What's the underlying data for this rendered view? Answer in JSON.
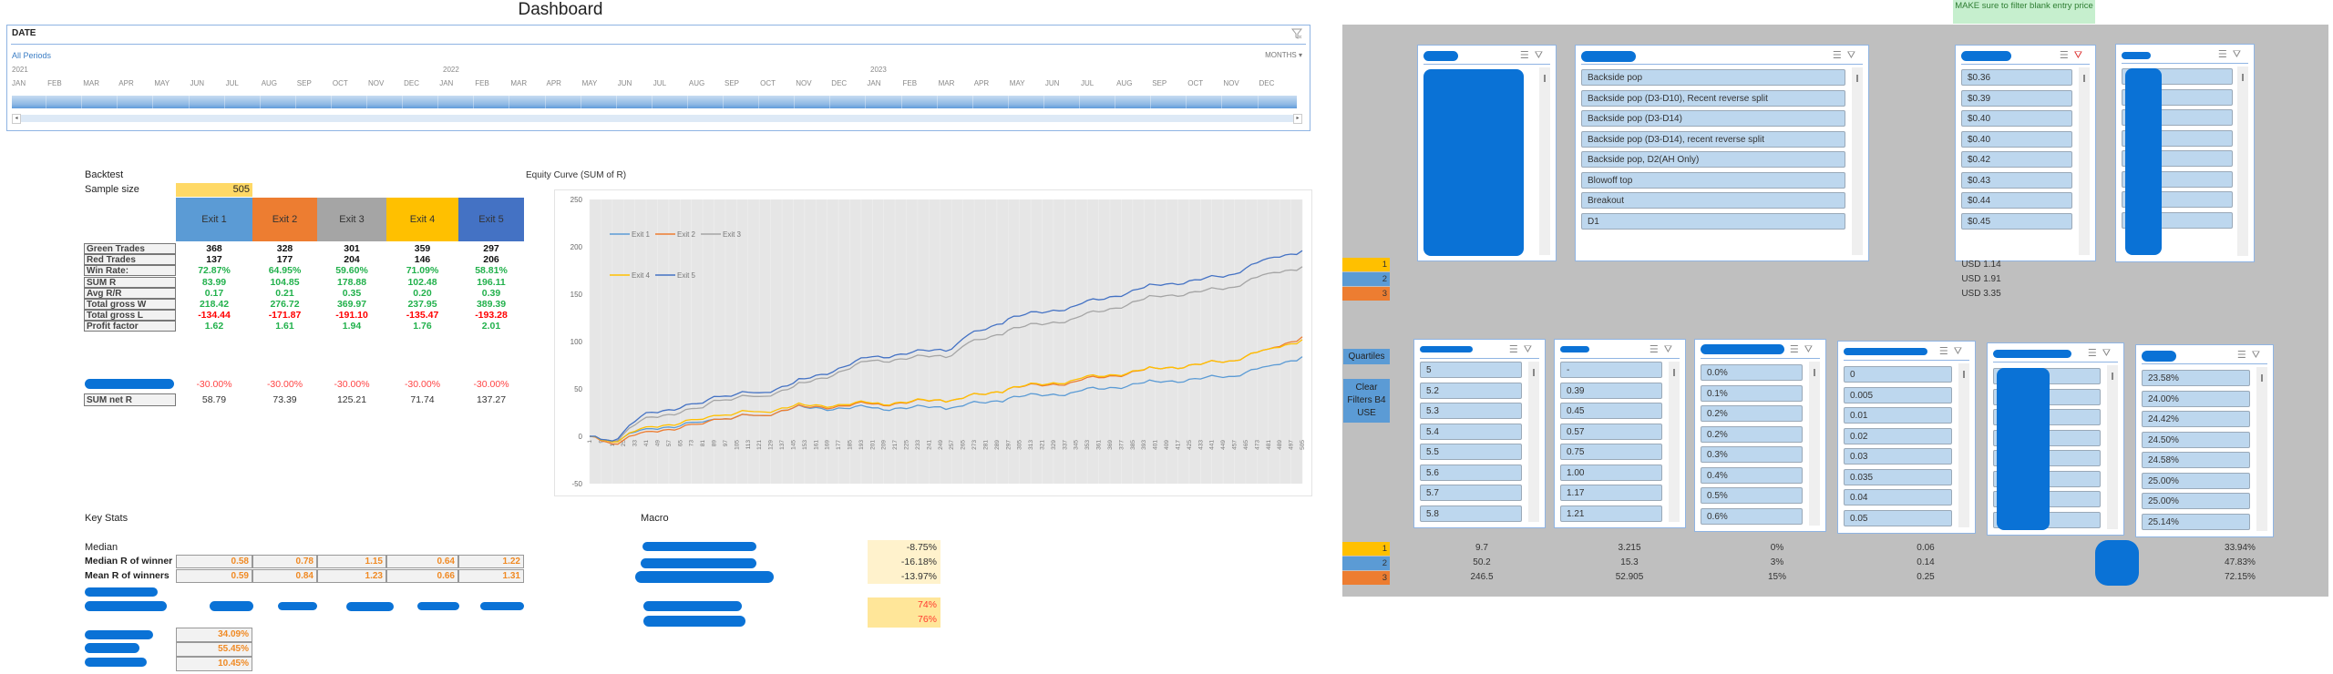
{
  "title": "Dashboard",
  "timeline": {
    "header": "DATE",
    "all_periods": "All Periods",
    "granularity": "MONTHS ▾",
    "years": [
      {
        "label": "2021",
        "x": 5
      },
      {
        "label": "2022",
        "x": 478
      },
      {
        "label": "2023",
        "x": 947
      }
    ],
    "months": [
      "JAN",
      "FEB",
      "MAR",
      "APR",
      "MAY",
      "JUN",
      "JUL",
      "AUG",
      "SEP",
      "OCT",
      "NOV",
      "DEC",
      "JAN",
      "FEB",
      "MAR",
      "APR",
      "MAY",
      "JUN",
      "JUL",
      "AUG",
      "SEP",
      "OCT",
      "NOV",
      "DEC",
      "JAN",
      "FEB",
      "MAR",
      "APR",
      "MAY",
      "JUN",
      "JUL",
      "AUG",
      "SEP",
      "OCT",
      "NOV",
      "DEC"
    ],
    "scroll_left": "◂",
    "scroll_right": "▸"
  },
  "backtest": {
    "heading": "Backtest",
    "sample_size_label": "Sample size",
    "sample_size": "505",
    "exits": [
      {
        "label": "Exit 1",
        "color": "#5b9bd5"
      },
      {
        "label": "Exit 2",
        "color": "#ed7d31"
      },
      {
        "label": "Exit 3",
        "color": "#a5a5a5"
      },
      {
        "label": "Exit 4",
        "color": "#ffc000"
      },
      {
        "label": "Exit 5",
        "color": "#4472c4"
      }
    ],
    "rows": [
      {
        "label": "Green Trades",
        "style": "black",
        "values": [
          "368",
          "328",
          "301",
          "359",
          "297"
        ]
      },
      {
        "label": "Red Trades",
        "style": "black",
        "values": [
          "137",
          "177",
          "204",
          "146",
          "206"
        ]
      },
      {
        "label": "Win Rate:",
        "style": "green",
        "values": [
          "72.87%",
          "64.95%",
          "59.60%",
          "71.09%",
          "58.81%"
        ]
      },
      {
        "label": "SUM R",
        "style": "green",
        "values": [
          "83.99",
          "104.85",
          "178.88",
          "102.48",
          "196.11"
        ]
      },
      {
        "label": "Avg R/R",
        "style": "green",
        "values": [
          "0.17",
          "0.21",
          "0.35",
          "0.20",
          "0.39"
        ]
      },
      {
        "label": "Total gross W",
        "style": "green",
        "values": [
          "218.42",
          "276.72",
          "369.97",
          "237.95",
          "389.39"
        ]
      },
      {
        "label": "Total gross L",
        "style": "red",
        "values": [
          "-134.44",
          "-171.87",
          "-191.10",
          "-135.47",
          "-193.28"
        ]
      },
      {
        "label": "Profit factor",
        "style": "green",
        "values": [
          "1.62",
          "1.61",
          "1.94",
          "1.76",
          "2.01"
        ]
      }
    ],
    "redacted_row_values": [
      "-30.00%",
      "-30.00%",
      "-30.00%",
      "-30.00%",
      "-30.00%"
    ],
    "sum_net_r_label": "SUM net R",
    "sum_net_r": [
      "58.79",
      "73.39",
      "125.21",
      "71.74",
      "137.27"
    ]
  },
  "chart_data": {
    "type": "line",
    "title": "Equity Curve (SUM of R)",
    "xlabel": "",
    "ylabel": "",
    "ylim": [
      -50,
      250
    ],
    "yticks": [
      -50,
      0,
      50,
      100,
      150,
      200,
      250
    ],
    "x_tick_start": 1,
    "x_tick_step": 8,
    "x_tick_end": 505,
    "x": [
      1,
      17,
      41,
      81,
      89,
      121,
      145,
      201,
      257,
      265,
      297,
      345,
      401,
      449,
      481,
      505
    ],
    "legend_position": "top-left (inside plot)",
    "grid": true,
    "series": [
      {
        "name": "Exit 1",
        "color": "#5b9bd5",
        "values": [
          0,
          -5,
          8,
          15,
          18,
          22,
          30,
          30,
          30,
          32,
          40,
          47,
          58,
          62,
          74,
          84
        ]
      },
      {
        "name": "Exit 2",
        "color": "#ed7d31",
        "values": [
          0,
          -8,
          5,
          13,
          18,
          22,
          30,
          34,
          38,
          40,
          50,
          58,
          72,
          78,
          92,
          105
        ]
      },
      {
        "name": "Exit 3",
        "color": "#a5a5a5",
        "values": [
          0,
          -6,
          20,
          30,
          38,
          42,
          52,
          80,
          85,
          95,
          112,
          125,
          148,
          155,
          172,
          179
        ]
      },
      {
        "name": "Exit 4",
        "color": "#ffc000",
        "values": [
          0,
          -6,
          10,
          18,
          22,
          26,
          32,
          35,
          38,
          40,
          50,
          60,
          72,
          78,
          92,
          102
        ]
      },
      {
        "name": "Exit 5",
        "color": "#4472c4",
        "values": [
          0,
          -5,
          25,
          35,
          42,
          46,
          56,
          84,
          92,
          103,
          124,
          138,
          160,
          168,
          188,
          196
        ]
      }
    ]
  },
  "key_stats": {
    "heading": "Key Stats",
    "median_label": "Median",
    "rows": [
      {
        "label": "Median R of winner",
        "values": [
          "0.58",
          "0.78",
          "1.15",
          "0.64",
          "1.22"
        ]
      },
      {
        "label": "Mean R of winners",
        "values": [
          "0.59",
          "0.84",
          "1.23",
          "0.66",
          "1.31"
        ]
      }
    ],
    "redacted_pcts": [
      "34.09%",
      "55.45%",
      "10.45%"
    ]
  },
  "macro": {
    "heading": "Macro",
    "group1": [
      "-8.75%",
      "-16.18%",
      "-13.97%"
    ],
    "group2": [
      "74%",
      "76%"
    ]
  },
  "right_panel": {
    "note": "MAKE sure to filter blank entry price",
    "quartile_labels": [
      "1",
      "2",
      "3"
    ],
    "quartile_colors": [
      "#ffc000",
      "#5b9bd5",
      "#ed7d31"
    ],
    "top_stats": [
      "USD 1.14",
      "USD 1.91",
      "USD 3.35"
    ],
    "quartiles_button": "Quartiles",
    "clear_filters_button": "Clear Filters B4 USE",
    "slicer_icons": {
      "multiselect": "☰",
      "clear_filter": "⛛"
    },
    "top_slicers": {
      "setup_items": [
        "Backside pop",
        "Backside pop (D3-D10), Recent reverse split",
        "Backside pop (D3-D14)",
        "Backside pop (D3-D14), recent reverse split",
        "Backside pop, D2(AH Only)",
        "Blowoff top",
        "Breakout",
        "D1"
      ],
      "price_items": [
        "$0.36",
        "$0.39",
        "$0.40",
        "$0.40",
        "$0.42",
        "$0.43",
        "$0.44",
        "$0.45"
      ]
    },
    "bottom_slicers": {
      "s1_items": [
        "5",
        "5.2",
        "5.3",
        "5.4",
        "5.5",
        "5.6",
        "5.7",
        "5.8"
      ],
      "s2_items": [
        "-",
        "0.39",
        "0.45",
        "0.57",
        "0.75",
        "1.00",
        "1.17",
        "1.21"
      ],
      "s3_items": [
        "0.0%",
        "0.1%",
        "0.2%",
        "0.2%",
        "0.3%",
        "0.4%",
        "0.5%",
        "0.6%"
      ],
      "s4_items": [
        "0",
        "0.005",
        "0.01",
        "0.02",
        "0.03",
        "0.035",
        "0.04",
        "0.05"
      ],
      "s6_items": [
        "23.58%",
        "24.00%",
        "24.42%",
        "24.50%",
        "24.58%",
        "25.00%",
        "25.00%",
        "25.14%"
      ]
    },
    "bottom_stats": [
      [
        "9.7",
        "3.215",
        "0%",
        "0.06",
        "33.94%"
      ],
      [
        "50.2",
        "15.3",
        "3%",
        "0.14",
        "47.83%"
      ],
      [
        "246.5",
        "52.905",
        "15%",
        "0.25",
        "72.15%"
      ]
    ]
  }
}
